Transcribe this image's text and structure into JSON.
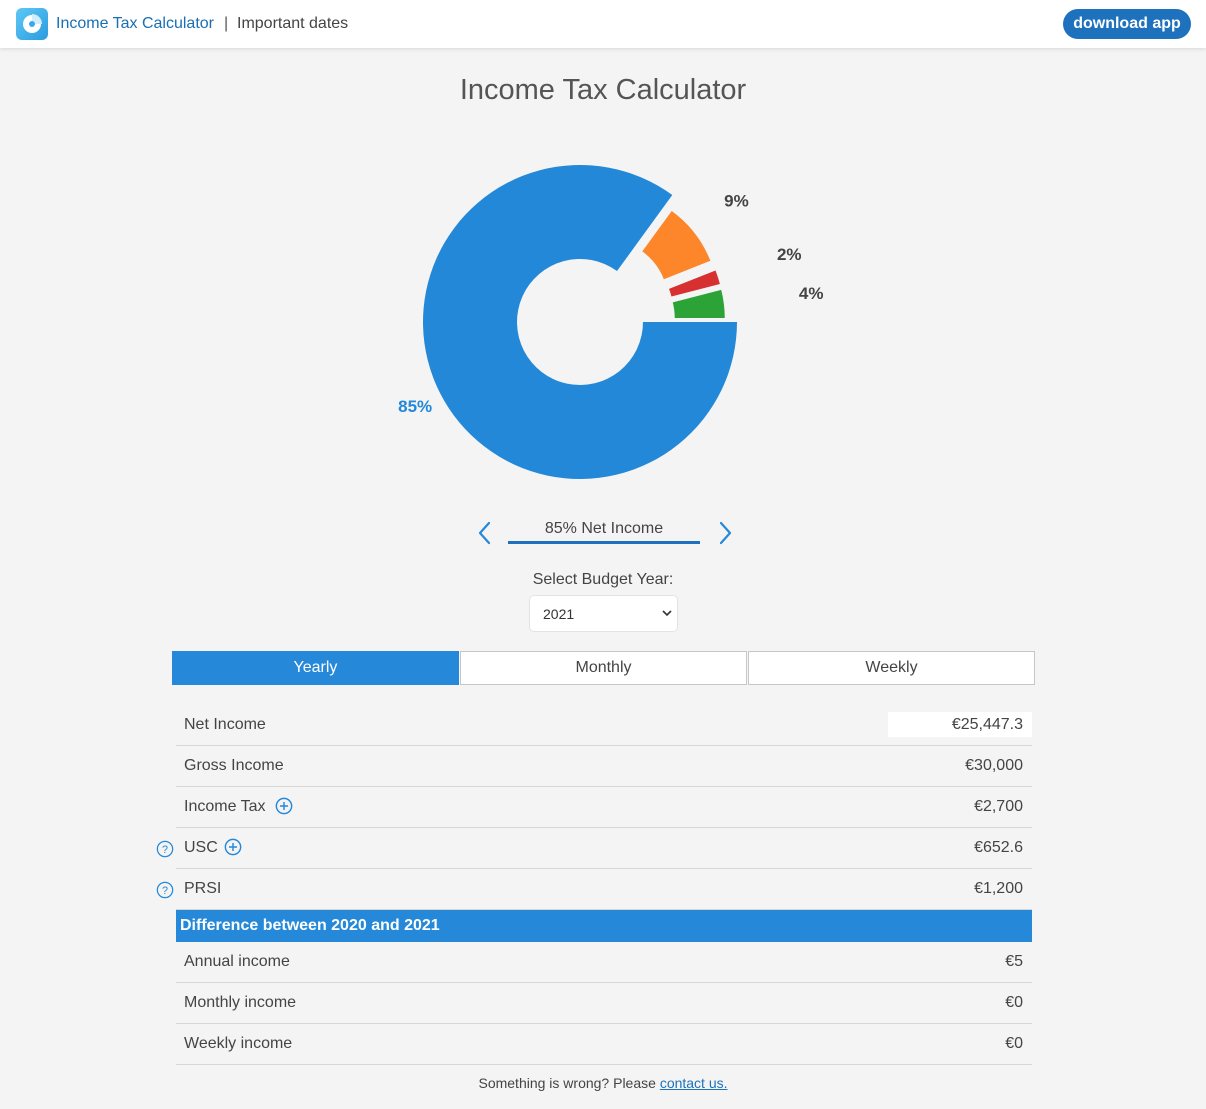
{
  "header": {
    "app_link": "Income Tax Calculator",
    "separator": "|",
    "dates_link": "Important dates",
    "download_label": "download app",
    "logo_icon": "pie-chart-icon"
  },
  "page_title": "Income Tax Calculator",
  "chart_data": {
    "type": "pie",
    "style": "donut",
    "labels": [
      "Net Income",
      "Income Tax",
      "USC",
      "PRSI"
    ],
    "values": [
      85,
      9,
      2,
      4
    ],
    "slice_labels": [
      "85%",
      "9%",
      "2%",
      "4%"
    ],
    "colors": [
      "#2388d8",
      "#fd852a",
      "#d73030",
      "#2ca336"
    ]
  },
  "carousel": {
    "label": "85% Net Income",
    "prev_icon": "chevron-left-icon",
    "next_icon": "chevron-right-icon"
  },
  "budget": {
    "label": "Select Budget Year:",
    "selected": "2021"
  },
  "tabs": [
    {
      "label": "Yearly",
      "active": true
    },
    {
      "label": "Monthly",
      "active": false
    },
    {
      "label": "Weekly",
      "active": false
    }
  ],
  "rows": [
    {
      "label": "Net Income",
      "value": "€25,447.3"
    },
    {
      "label": "Gross Income",
      "value": "€30,000"
    },
    {
      "label": "Income Tax",
      "value": "€2,700"
    },
    {
      "label": "USC",
      "value": "€652.6"
    },
    {
      "label": "PRSI",
      "value": "€1,200"
    }
  ],
  "difference": {
    "title": "Difference between 2020 and 2021",
    "rows": [
      {
        "label": "Annual income",
        "value": "€5"
      },
      {
        "label": "Monthly income",
        "value": "€0"
      },
      {
        "label": "Weekly income",
        "value": "€0"
      }
    ]
  },
  "footer": {
    "text": "Something is wrong? Please",
    "link": "contact us."
  }
}
